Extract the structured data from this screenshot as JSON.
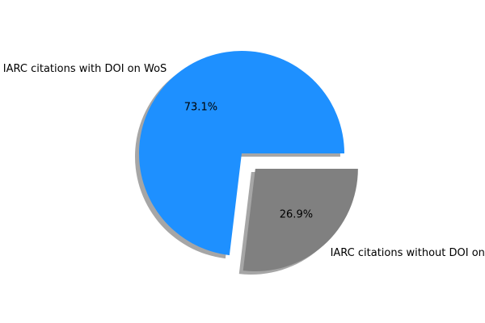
{
  "chart_data": {
    "type": "pie",
    "labels": [
      "IARC citations with DOI on WoS",
      "IARC citations without DOI on WoS"
    ],
    "values": [
      73.1,
      26.9
    ],
    "pct_labels": [
      "73.1%",
      "26.9%"
    ],
    "colors": [
      "#1e90ff",
      "#808080"
    ],
    "explode": [
      0,
      0.2
    ],
    "shadow": true,
    "start_angle_deg": 0
  }
}
